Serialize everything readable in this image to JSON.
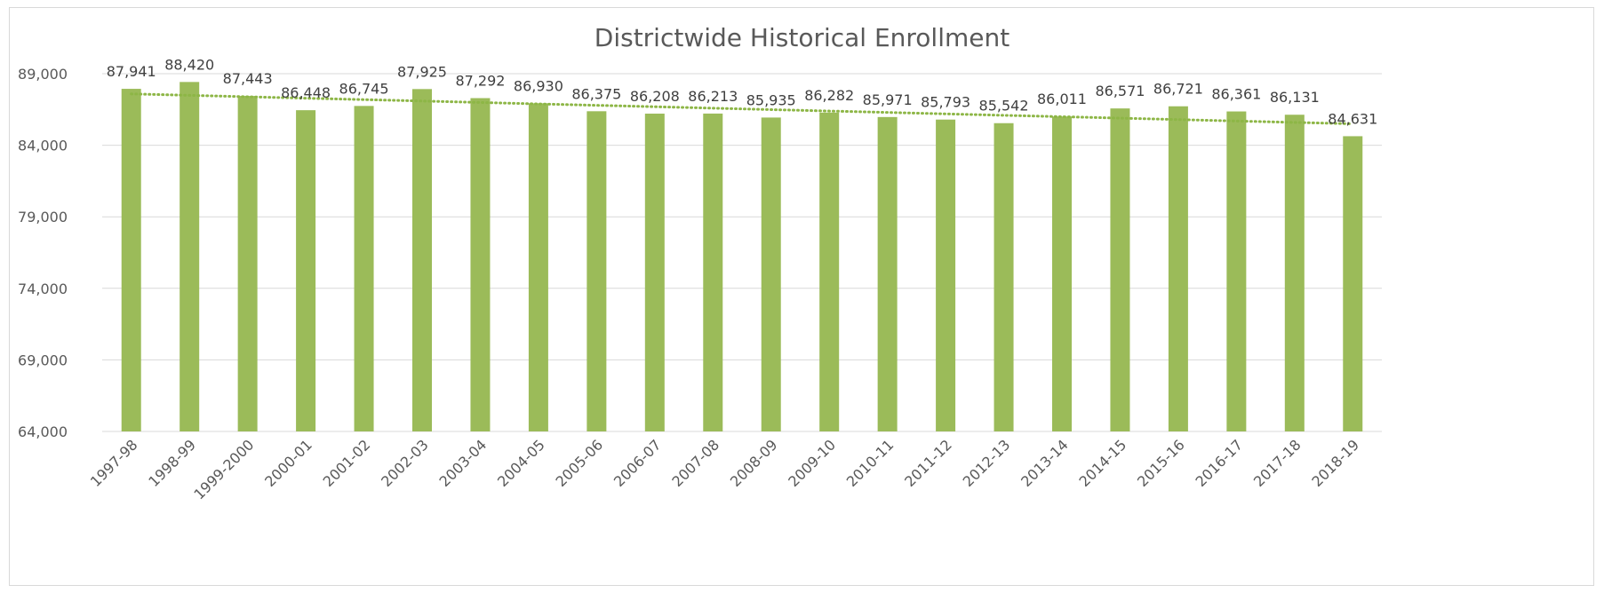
{
  "chart_data": {
    "type": "bar",
    "title": "Districtwide Historical Enrollment",
    "categories": [
      "1997-98",
      "1998-99",
      "1999-2000",
      "2000-01",
      "2001-02",
      "2002-03",
      "2003-04",
      "2004-05",
      "2005-06",
      "2006-07",
      "2007-08",
      "2008-09",
      "2009-10",
      "2010-11",
      "2011-12",
      "2012-13",
      "2013-14",
      "2014-15",
      "2015-16",
      "2016-17",
      "2017-18",
      "2018-19"
    ],
    "values": [
      87941,
      88420,
      87443,
      86448,
      86745,
      87925,
      87292,
      86930,
      86375,
      86208,
      86213,
      85935,
      86282,
      85971,
      85793,
      85542,
      86011,
      86571,
      86721,
      86361,
      86131,
      84631
    ],
    "data_labels": [
      "87,941",
      "88,420",
      "87,443",
      "86,448",
      "86,745",
      "87,925",
      "87,292",
      "86,930",
      "86,375",
      "86,208",
      "86,213",
      "85,935",
      "86,282",
      "85,971",
      "85,793",
      "85,542",
      "86,011",
      "86,571",
      "86,721",
      "86,361",
      "86,131",
      "84,631"
    ],
    "ylim": [
      64000,
      89000
    ],
    "y_ticks": [
      64000,
      69000,
      74000,
      79000,
      84000,
      89000
    ],
    "y_tick_labels": [
      "64,000",
      "69,000",
      "74,000",
      "79,000",
      "84,000",
      "89,000"
    ],
    "trendline": "linear, dotted",
    "grid": true,
    "legend": "none",
    "bar_color": "#9bbb59",
    "trendline_color": "#8db646",
    "gridline_color": "#d9d9d9"
  }
}
